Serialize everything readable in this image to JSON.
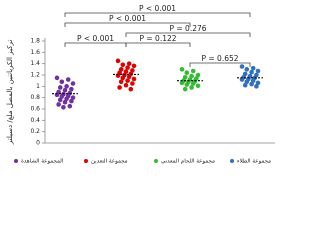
{
  "chart_data": {
    "type": "strip",
    "y_label": "تركيز الكرياتنين بالمصل ملغ/ دسيلتر",
    "ylim": [
      0,
      1.8
    ],
    "yticks": [
      0,
      0.2,
      0.4,
      0.6,
      0.8,
      1,
      1.2,
      1.4,
      1.6,
      1.8
    ],
    "series": [
      {
        "name": "المجموعة الشاهدة",
        "color": "#7030a0",
        "mean": 0.87,
        "values": [
          1.15,
          1.12,
          1.08,
          1.05,
          1.0,
          0.98,
          0.95,
          0.93,
          0.9,
          0.88,
          0.86,
          0.85,
          0.83,
          0.82,
          0.8,
          0.78,
          0.76,
          0.74,
          0.72,
          0.68,
          0.65,
          0.63
        ]
      },
      {
        "name": "مجموعة التعدين",
        "color": "#e00000",
        "mean": 1.21,
        "values": [
          1.45,
          1.4,
          1.38,
          1.36,
          1.33,
          1.3,
          1.28,
          1.26,
          1.24,
          1.22,
          1.2,
          1.19,
          1.17,
          1.15,
          1.13,
          1.1,
          1.08,
          1.05,
          1.02,
          0.98,
          0.95
        ]
      },
      {
        "name": "مجموعة اللحام المعدني",
        "color": "#33bb33",
        "mean": 1.1,
        "values": [
          1.3,
          1.27,
          1.24,
          1.2,
          1.18,
          1.16,
          1.14,
          1.12,
          1.1,
          1.09,
          1.08,
          1.06,
          1.05,
          1.03,
          1.01,
          0.98,
          0.95
        ]
      },
      {
        "name": "مجموعة الطلاء",
        "color": "#3070c0",
        "mean": 1.15,
        "values": [
          1.35,
          1.32,
          1.3,
          1.27,
          1.25,
          1.22,
          1.2,
          1.18,
          1.16,
          1.15,
          1.13,
          1.12,
          1.1,
          1.08,
          1.06,
          1.04,
          1.02,
          1.0
        ]
      }
    ],
    "comparisons": [
      {
        "groups": [
          0,
          3
        ],
        "label": "P < 0.001"
      },
      {
        "groups": [
          0,
          2
        ],
        "label": "P < 0.001"
      },
      {
        "groups": [
          1,
          3
        ],
        "label": "P = 0.276"
      },
      {
        "groups": [
          0,
          1
        ],
        "label": "P < 0.001"
      },
      {
        "groups": [
          1,
          2
        ],
        "label": "P = 0.122"
      },
      {
        "groups": [
          2,
          3
        ],
        "label": "P = 0.652"
      }
    ]
  }
}
